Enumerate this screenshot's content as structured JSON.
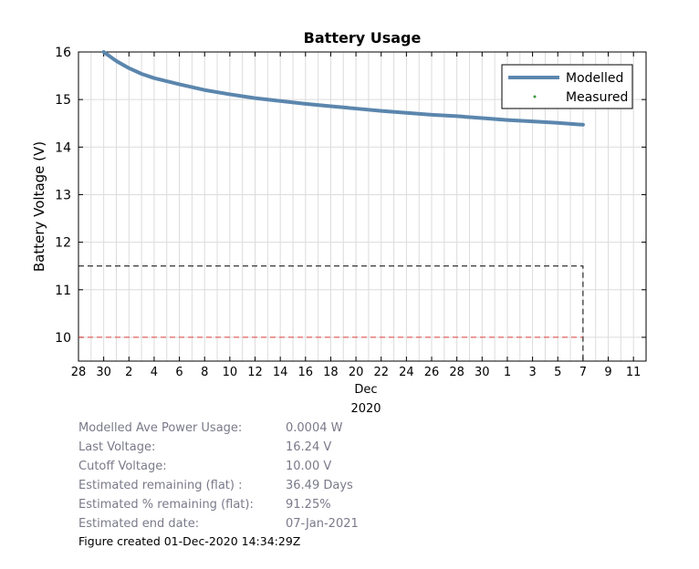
{
  "chart_data": {
    "type": "line",
    "title": "Battery Usage",
    "ylabel": "Battery Voltage (V)",
    "xlabel_lines": [
      "Dec",
      "2020"
    ],
    "ylim": [
      9.5,
      16
    ],
    "xlim": [
      "2020-11-28",
      "2021-01-12"
    ],
    "y_ticks": [
      10,
      11,
      12,
      13,
      14,
      15,
      16
    ],
    "x_ticks": [
      {
        "date": "2020-11-28",
        "label": "28"
      },
      {
        "date": "2020-11-30",
        "label": "30"
      },
      {
        "date": "2020-12-02",
        "label": "2"
      },
      {
        "date": "2020-12-04",
        "label": "4"
      },
      {
        "date": "2020-12-06",
        "label": "6"
      },
      {
        "date": "2020-12-08",
        "label": "8"
      },
      {
        "date": "2020-12-10",
        "label": "10"
      },
      {
        "date": "2020-12-12",
        "label": "12"
      },
      {
        "date": "2020-12-14",
        "label": "14"
      },
      {
        "date": "2020-12-16",
        "label": "16"
      },
      {
        "date": "2020-12-18",
        "label": "18"
      },
      {
        "date": "2020-12-20",
        "label": "20"
      },
      {
        "date": "2020-12-22",
        "label": "22"
      },
      {
        "date": "2020-12-24",
        "label": "24"
      },
      {
        "date": "2020-12-26",
        "label": "26"
      },
      {
        "date": "2020-12-28",
        "label": "28"
      },
      {
        "date": "2020-12-30",
        "label": "30"
      },
      {
        "date": "2021-01-01",
        "label": "1"
      },
      {
        "date": "2021-01-03",
        "label": "3"
      },
      {
        "date": "2021-01-05",
        "label": "5"
      },
      {
        "date": "2021-01-07",
        "label": "7"
      },
      {
        "date": "2021-01-09",
        "label": "9"
      },
      {
        "date": "2021-01-11",
        "label": "11"
      }
    ],
    "grid": true,
    "legend_position": "top-right",
    "series": [
      {
        "name": "Modelled",
        "color": "#5b86ad",
        "style": "solid",
        "points": [
          {
            "x": "2020-11-30",
            "y": 16.0
          },
          {
            "x": "2020-12-01",
            "y": 15.81
          },
          {
            "x": "2020-12-02",
            "y": 15.66
          },
          {
            "x": "2020-12-03",
            "y": 15.54
          },
          {
            "x": "2020-12-04",
            "y": 15.45
          },
          {
            "x": "2020-12-06",
            "y": 15.32
          },
          {
            "x": "2020-12-08",
            "y": 15.2
          },
          {
            "x": "2020-12-10",
            "y": 15.11
          },
          {
            "x": "2020-12-12",
            "y": 15.03
          },
          {
            "x": "2020-12-14",
            "y": 14.97
          },
          {
            "x": "2020-12-16",
            "y": 14.91
          },
          {
            "x": "2020-12-18",
            "y": 14.86
          },
          {
            "x": "2020-12-20",
            "y": 14.81
          },
          {
            "x": "2020-12-22",
            "y": 14.76
          },
          {
            "x": "2020-12-24",
            "y": 14.72
          },
          {
            "x": "2020-12-26",
            "y": 14.68
          },
          {
            "x": "2020-12-28",
            "y": 14.65
          },
          {
            "x": "2020-12-30",
            "y": 14.61
          },
          {
            "x": "2021-01-01",
            "y": 14.57
          },
          {
            "x": "2021-01-03",
            "y": 14.54
          },
          {
            "x": "2021-01-05",
            "y": 14.51
          },
          {
            "x": "2021-01-07",
            "y": 14.47
          }
        ]
      },
      {
        "name": "Measured",
        "color": "#3a9a3a",
        "style": "marker",
        "points": []
      }
    ],
    "reference_lines": [
      {
        "id": "threshold",
        "color": "#000000",
        "style": "dashed",
        "points": [
          {
            "x": "2020-11-28",
            "y": 11.5
          },
          {
            "x": "2021-01-07",
            "y": 11.5
          },
          {
            "x": "2021-01-07",
            "y": 9.5
          }
        ]
      },
      {
        "id": "cutoff",
        "color": "#e0403c",
        "style": "dashed",
        "points": [
          {
            "x": "2020-11-28",
            "y": 10.0
          },
          {
            "x": "2021-01-07",
            "y": 10.0
          }
        ]
      }
    ]
  },
  "info": [
    {
      "label": "Modelled Ave Power Usage:",
      "value": "0.0004 W"
    },
    {
      "label": "Last Voltage:",
      "value": "16.24 V"
    },
    {
      "label": "Cutoff Voltage:",
      "value": "10.00 V"
    },
    {
      "label": "Estimated remaining (flat) :",
      "value": "36.49 Days"
    },
    {
      "label": "Estimated % remaining (flat):",
      "value": "91.25%"
    },
    {
      "label": "Estimated end date:",
      "value": "07-Jan-2021"
    }
  ],
  "footer": "Figure created 01-Dec-2020 14:34:29Z"
}
